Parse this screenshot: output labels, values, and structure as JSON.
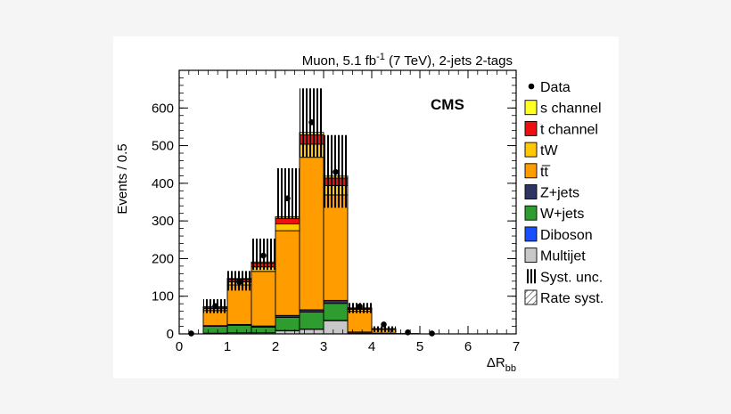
{
  "chart_data": {
    "type": "bar",
    "stacked": true,
    "header_prefix": "Muon, 5.1 fb",
    "header_sup": "-1",
    "header_suffix": " (7 TeV), 2-jets 2-tags",
    "experiment_label": "CMS",
    "ylabel": "Events / 0.5",
    "xlabel_prefix": "ΔR",
    "xlabel_sub": "bb",
    "xlim": [
      0,
      7
    ],
    "ylim": [
      0,
      700
    ],
    "x_ticks": [
      0,
      1,
      2,
      3,
      4,
      5,
      6,
      7
    ],
    "y_ticks": [
      0,
      100,
      200,
      300,
      400,
      500,
      600
    ],
    "bin_edges": [
      0,
      0.5,
      1,
      1.5,
      2,
      2.5,
      3,
      3.5,
      4,
      4.5,
      5,
      5.5,
      6,
      6.5,
      7
    ],
    "series": [
      {
        "name": "Multijet",
        "color": "#c8c8c8",
        "values": [
          0,
          2,
          3,
          3,
          8,
          12,
          35,
          2,
          1,
          0,
          0,
          0,
          0,
          0
        ]
      },
      {
        "name": "Diboson",
        "color": "#1a4fff",
        "values": [
          0,
          0,
          0,
          0,
          1,
          1,
          1,
          0,
          0,
          0,
          0,
          0,
          0,
          0
        ]
      },
      {
        "name": "W+jets",
        "color": "#2e9c2e",
        "values": [
          0,
          18,
          20,
          15,
          35,
          45,
          45,
          3,
          1,
          0,
          0,
          0,
          0,
          0
        ]
      },
      {
        "name": "Z+jets",
        "color": "#2e3560",
        "values": [
          0,
          2,
          2,
          3,
          5,
          6,
          8,
          0,
          0,
          0,
          0,
          0,
          0,
          0
        ]
      },
      {
        "name": "tt̅",
        "color": "#ff9d00",
        "values": [
          0,
          40,
          105,
          145,
          225,
          405,
          280,
          55,
          10,
          1,
          0,
          0,
          0,
          0
        ]
      },
      {
        "name": "tW",
        "color": "#ffc800",
        "values": [
          0,
          5,
          8,
          12,
          18,
          35,
          25,
          5,
          1,
          0,
          0,
          0,
          0,
          0
        ]
      },
      {
        "name": "t channel",
        "color": "#ee1010",
        "values": [
          0,
          4,
          7,
          10,
          15,
          25,
          20,
          3,
          1,
          0,
          0,
          0,
          0,
          0
        ]
      },
      {
        "name": "s channel",
        "color": "#ffff22",
        "values": [
          0,
          1,
          2,
          3,
          4,
          6,
          5,
          1,
          0,
          0,
          0,
          0,
          0,
          0
        ]
      }
    ],
    "syst_band": [
      {
        "bin": [
          0.5,
          1.0
        ],
        "low": 55,
        "high": 92
      },
      {
        "bin": [
          1.0,
          1.5
        ],
        "low": 115,
        "high": 167
      },
      {
        "bin": [
          1.5,
          2.0
        ],
        "low": 170,
        "high": 253
      },
      {
        "bin": [
          2.0,
          2.5
        ],
        "low": 305,
        "high": 440
      },
      {
        "bin": [
          2.5,
          3.0
        ],
        "low": 470,
        "high": 652
      },
      {
        "bin": [
          3.0,
          3.5
        ],
        "low": 335,
        "high": 528
      },
      {
        "bin": [
          3.5,
          4.0
        ],
        "low": 55,
        "high": 82
      },
      {
        "bin": [
          4.0,
          4.5
        ],
        "low": 5,
        "high": 20
      }
    ],
    "data_points": [
      {
        "x": 0.25,
        "y": 1
      },
      {
        "x": 0.75,
        "y": 74
      },
      {
        "x": 1.25,
        "y": 138
      },
      {
        "x": 1.75,
        "y": 208
      },
      {
        "x": 2.25,
        "y": 360
      },
      {
        "x": 2.75,
        "y": 562
      },
      {
        "x": 3.25,
        "y": 430
      },
      {
        "x": 3.75,
        "y": 73
      },
      {
        "x": 4.25,
        "y": 25
      },
      {
        "x": 4.75,
        "y": 4
      },
      {
        "x": 5.25,
        "y": 1
      }
    ],
    "legend": [
      {
        "label": "Data",
        "kind": "marker",
        "color": "#000000"
      },
      {
        "label": "s channel",
        "kind": "fill",
        "color": "#ffff22"
      },
      {
        "label": "t channel",
        "kind": "fill",
        "color": "#ee1010"
      },
      {
        "label": "tW",
        "kind": "fill",
        "color": "#ffc800"
      },
      {
        "label": "tt̅",
        "kind": "fill",
        "color": "#ff9d00"
      },
      {
        "label": "Z+jets",
        "kind": "fill",
        "color": "#2e3560"
      },
      {
        "label": "W+jets",
        "kind": "fill",
        "color": "#2e9c2e"
      },
      {
        "label": "Diboson",
        "kind": "fill",
        "color": "#1a4fff"
      },
      {
        "label": "Multijet",
        "kind": "fill",
        "color": "#c8c8c8"
      },
      {
        "label": "Syst. unc.",
        "kind": "syst",
        "color": "#000000"
      },
      {
        "label": "Rate syst.",
        "kind": "rate",
        "color": "#555555"
      }
    ],
    "legend_position": "right, outside plot",
    "grid": false
  }
}
